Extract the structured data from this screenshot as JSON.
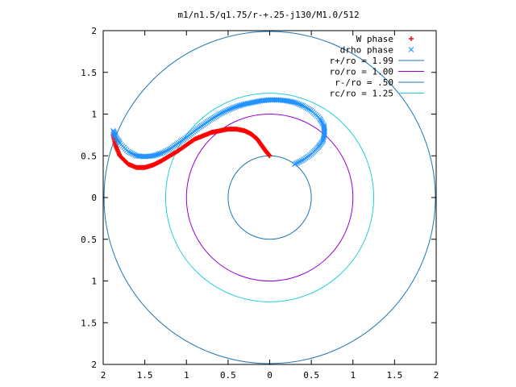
{
  "chart_data": {
    "type": "scatter",
    "title": "m1/n1.5/q1.75/r-+.25-j130/M1.0/512",
    "xlabel": "",
    "ylabel": "",
    "xlim": [
      -2,
      2
    ],
    "ylim": [
      -2,
      2
    ],
    "x_ticks": [
      -2,
      -1.5,
      -1,
      -0.5,
      0,
      0.5,
      1,
      1.5,
      2
    ],
    "x_tick_labels": [
      "2",
      "1.5",
      "1",
      "0.5",
      "0",
      "0.5",
      "1",
      "1.5",
      "2"
    ],
    "y_ticks": [
      2,
      1.5,
      1,
      0.5,
      0,
      -0.5,
      -1,
      -1.5,
      -2
    ],
    "y_tick_labels": [
      "2",
      "1.5",
      "1",
      "0.5",
      "0",
      "0.5",
      "1",
      "1.5",
      "2"
    ],
    "grid": false,
    "legend_position": "top-right",
    "colors": {
      "w_phase": "#ff0000",
      "drho_phase": "#1e90ff",
      "r_plus": "#1f77b4",
      "r_o": "#9400d3",
      "r_minus": "#1f77b4",
      "r_c": "#20d0d8"
    },
    "circles": [
      {
        "name": "r+/ro = 1.99",
        "radius": 1.99
      },
      {
        "name": "ro/ro = 1.00",
        "radius": 1.0
      },
      {
        "name": "r-/ro = .50",
        "radius": 0.5
      },
      {
        "name": "rc/ro = 1.25",
        "radius": 1.25
      }
    ],
    "series": [
      {
        "name": "W phase",
        "marker": "plus",
        "x": [
          0,
          -0.05,
          -0.1,
          -0.15,
          -0.22,
          -0.3,
          -0.4,
          -0.5,
          -0.6,
          -0.7,
          -0.8,
          -0.9,
          -1.0,
          -1.1,
          -1.2,
          -1.3,
          -1.4,
          -1.5,
          -1.6,
          -1.7,
          -1.8,
          -1.85,
          -1.88
        ],
        "y": [
          0.5,
          0.56,
          0.63,
          0.7,
          0.76,
          0.8,
          0.82,
          0.82,
          0.8,
          0.78,
          0.74,
          0.7,
          0.63,
          0.56,
          0.5,
          0.44,
          0.39,
          0.36,
          0.36,
          0.4,
          0.5,
          0.62,
          0.75
        ]
      },
      {
        "name": "drho phase",
        "marker": "cross",
        "x": [
          0.3,
          0.4,
          0.5,
          0.58,
          0.64,
          0.66,
          0.65,
          0.6,
          0.5,
          0.4,
          0.3,
          0.2,
          0.1,
          0,
          -0.1,
          -0.2,
          -0.3,
          -0.4,
          -0.5,
          -0.6,
          -0.7,
          -0.8,
          -0.9,
          -1.0,
          -1.1,
          -1.2,
          -1.3,
          -1.4,
          -1.5,
          -1.6,
          -1.7,
          -1.8,
          -1.85,
          -1.88
        ],
        "y": [
          0.4,
          0.45,
          0.52,
          0.6,
          0.68,
          0.78,
          0.86,
          0.95,
          1.04,
          1.1,
          1.14,
          1.16,
          1.17,
          1.17,
          1.16,
          1.14,
          1.12,
          1.09,
          1.05,
          1.0,
          0.94,
          0.87,
          0.8,
          0.72,
          0.65,
          0.58,
          0.53,
          0.5,
          0.49,
          0.5,
          0.55,
          0.65,
          0.73,
          0.8
        ]
      }
    ]
  }
}
